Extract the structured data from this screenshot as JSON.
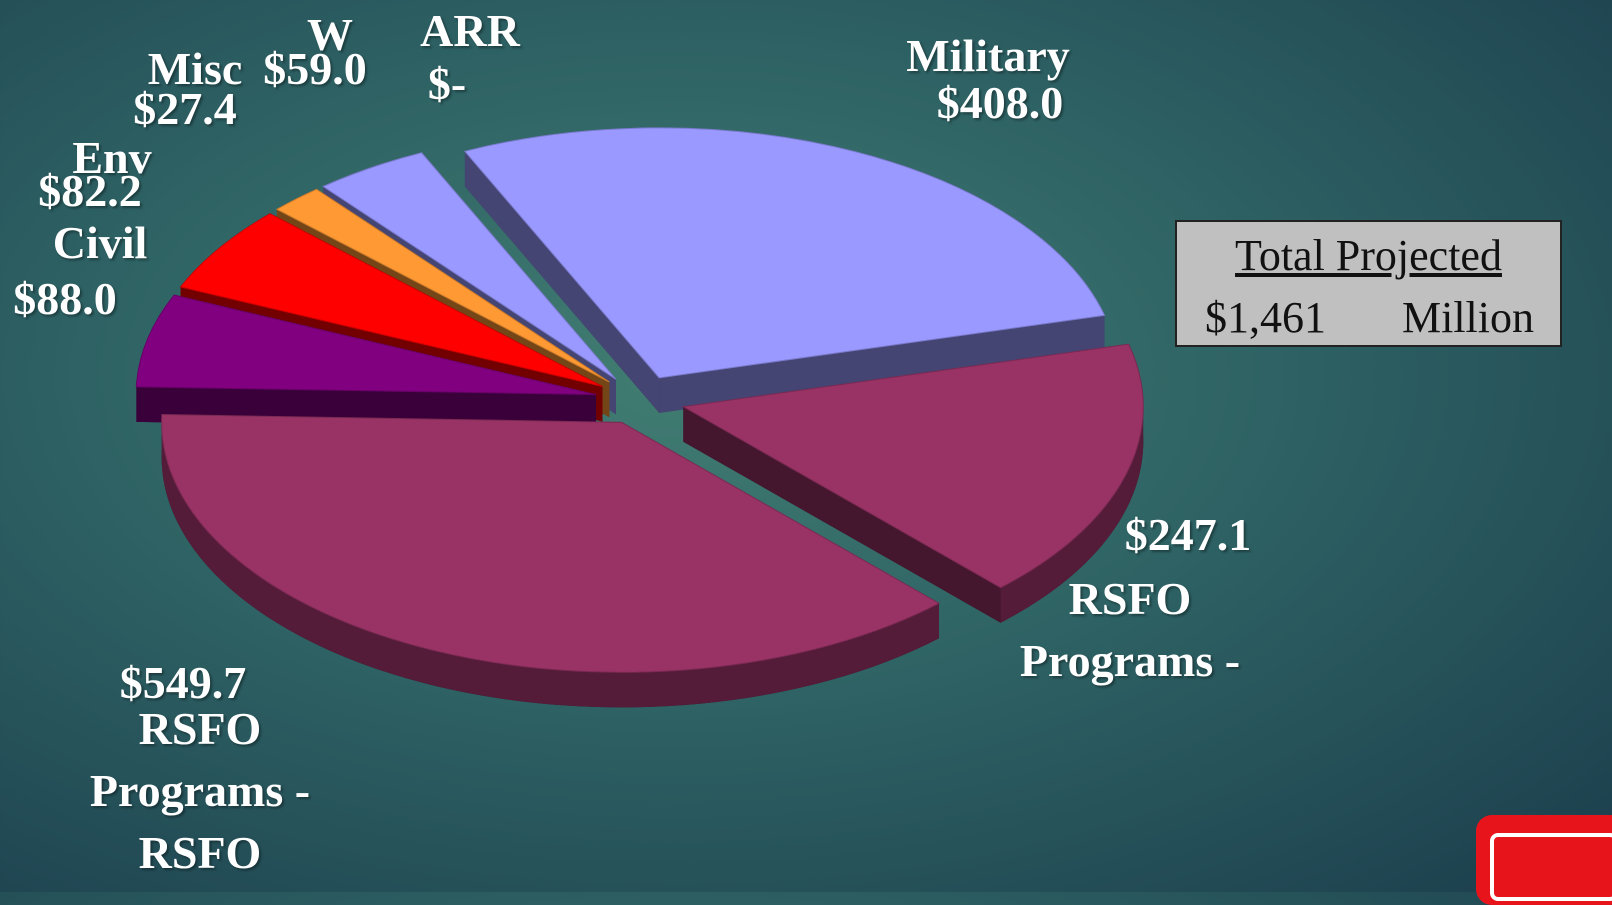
{
  "chart_data": {
    "type": "pie",
    "categories": [
      "Military",
      "RSFO Programs -",
      "RSFO Programs - RSFO",
      "Civil",
      "Env",
      "Misc",
      "W",
      "ARR"
    ],
    "values": [
      408.0,
      247.1,
      549.7,
      88.0,
      82.2,
      27.4,
      59.0,
      0
    ],
    "value_labels": [
      "$408.0",
      "$247.1",
      "$549.7",
      "$88.0",
      "$82.2",
      "$27.4",
      "$59.0",
      "$-"
    ],
    "colors": [
      "#9999ff",
      "#993366",
      "#993366",
      "#800080",
      "#ff0000",
      "#ff9933",
      "#9999ff",
      "#333366"
    ],
    "total_box": {
      "heading": "Total Projected",
      "amount": "$1,461",
      "unit": "Million"
    }
  }
}
